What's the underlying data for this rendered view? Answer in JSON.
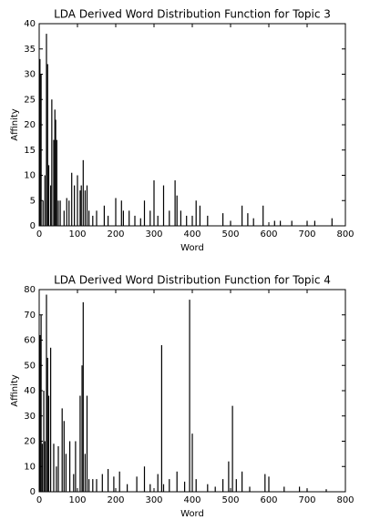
{
  "chart_data": [
    {
      "type": "bar",
      "title": "LDA Derived Word Distribution Function for Topic 3",
      "x_label": "Word",
      "y_label": "Affinity",
      "color": "#000000",
      "x": [
        2,
        5,
        10,
        15,
        19,
        22,
        25,
        30,
        33,
        38,
        41,
        43,
        46,
        50,
        55,
        65,
        72,
        78,
        85,
        92,
        100,
        107,
        110,
        115,
        120,
        125,
        130,
        140,
        150,
        170,
        180,
        200,
        215,
        220,
        235,
        250,
        265,
        275,
        290,
        300,
        310,
        325,
        340,
        355,
        360,
        370,
        385,
        400,
        410,
        420,
        440,
        480,
        500,
        530,
        545,
        560,
        585,
        615,
        630,
        660,
        700,
        720,
        765
      ],
      "values": [
        33,
        30,
        5,
        10,
        38,
        32,
        12,
        8,
        25,
        17,
        23,
        21,
        17,
        5,
        5,
        3,
        5.5,
        5,
        10.5,
        8,
        10,
        7,
        8,
        13,
        7,
        8,
        3,
        2,
        3,
        4,
        2,
        5.5,
        5,
        3,
        3,
        2,
        1.5,
        5,
        3,
        9,
        2,
        8,
        3,
        9,
        6,
        3,
        2,
        2,
        5,
        4,
        2,
        2.5,
        1,
        4,
        2.5,
        1.5,
        4,
        1,
        1,
        1,
        1,
        1,
        1.5
      ],
      "xlim": [
        0,
        800
      ],
      "xticks": [
        0,
        100,
        200,
        300,
        400,
        500,
        600,
        700,
        800
      ],
      "ylim": [
        0,
        40
      ],
      "yticks": [
        0,
        5,
        10,
        15,
        20,
        25,
        30,
        35,
        40
      ]
    },
    {
      "type": "bar",
      "title": "LDA Derived Word Distribution Function for Topic 4",
      "x_label": "Word",
      "y_label": "Affinity",
      "color": "#000000",
      "x": [
        2,
        5,
        8,
        12,
        15,
        19,
        22,
        25,
        30,
        38,
        45,
        50,
        60,
        65,
        70,
        80,
        90,
        95,
        107,
        112,
        115,
        120,
        125,
        130,
        140,
        150,
        165,
        180,
        195,
        210,
        230,
        255,
        275,
        290,
        310,
        320,
        325,
        340,
        360,
        380,
        393,
        400,
        410,
        440,
        460,
        480,
        495,
        505,
        515,
        530,
        550,
        590,
        600,
        640,
        680,
        700,
        750
      ],
      "values": [
        62,
        70,
        19,
        40,
        20,
        78,
        53,
        38,
        57,
        19,
        10,
        18,
        33,
        28,
        15,
        20,
        7,
        20,
        38,
        50,
        75,
        15,
        38,
        5,
        5,
        5,
        7,
        9,
        6,
        8,
        3,
        6,
        10,
        3,
        7,
        58,
        3,
        5,
        8,
        4,
        76,
        23,
        5,
        3,
        2,
        5,
        12,
        34,
        5,
        8,
        2,
        7,
        6,
        2,
        2,
        1,
        1
      ],
      "xlim": [
        0,
        800
      ],
      "xticks": [
        0,
        100,
        200,
        300,
        400,
        500,
        600,
        700,
        800
      ],
      "ylim": [
        0,
        80
      ],
      "yticks": [
        0,
        10,
        20,
        30,
        40,
        50,
        60,
        70,
        80
      ]
    }
  ]
}
